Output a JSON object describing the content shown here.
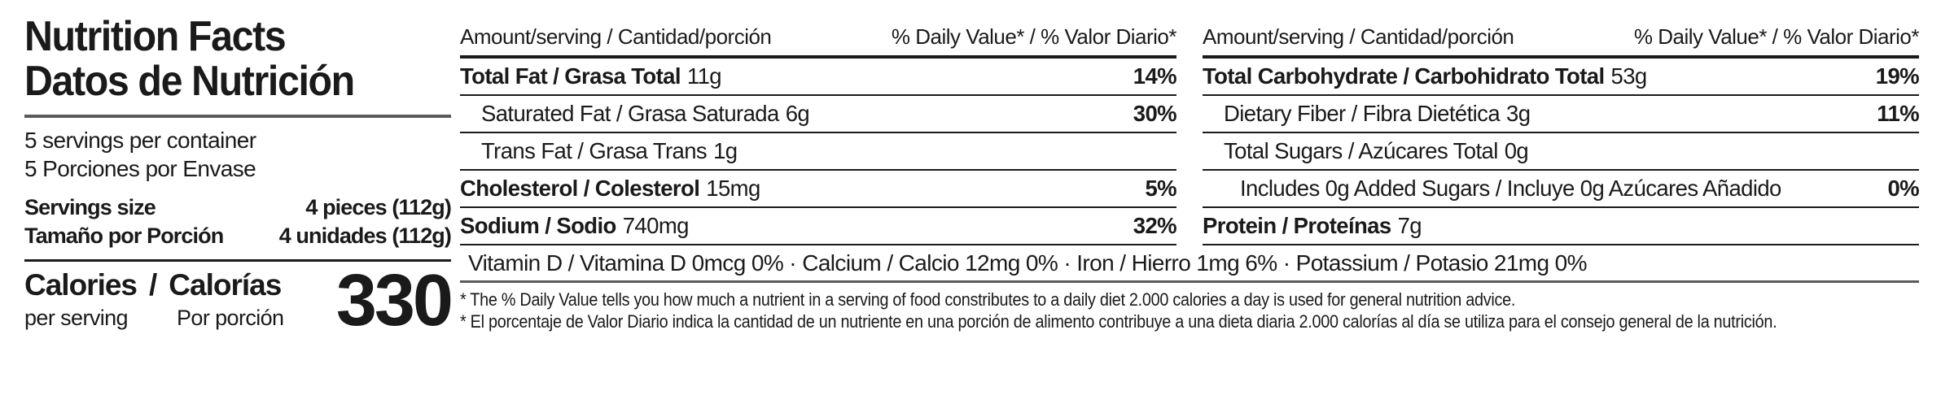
{
  "panel": {
    "title_en": "Nutrition Facts",
    "title_es": "Datos de Nutrición",
    "servings_per_container_en": "5 servings per container",
    "servings_per_container_es": "5 Porciones por Envase",
    "serving_size": {
      "label_en": "Servings size",
      "label_es": "Tamaño por Porción",
      "value_en": "4 pieces (112g)",
      "value_es": "4 unidades (112g)"
    },
    "calories": {
      "en": "Calories",
      "sep": "/",
      "es": "Calorías",
      "sub_en": "per serving",
      "sub_es": "Por porción",
      "value": "330"
    }
  },
  "tables": {
    "header": {
      "amount": "Amount/serving / Cantidad/porción",
      "daily_value": "% Daily Value* / % Valor Diario*"
    },
    "left": {
      "rows": [
        {
          "name": "Total Fat / Grasa Total",
          "amount": "11g",
          "dv": "14%"
        },
        {
          "name": "Saturated Fat / Grasa Saturada",
          "amount": "6g",
          "dv": "30%"
        },
        {
          "name": "Trans Fat / Grasa Trans",
          "amount": "1g",
          "dv": ""
        },
        {
          "name": "Cholesterol / Colesterol",
          "amount": "15mg",
          "dv": "5%"
        },
        {
          "name": "Sodium / Sodio",
          "amount": "740mg",
          "dv": "32%"
        }
      ]
    },
    "right": {
      "rows": [
        {
          "name": "Total Carbohydrate / Carbohidrato Total",
          "amount": "53g",
          "dv": "19%"
        },
        {
          "name": "Dietary Fiber / Fibra Dietética",
          "amount": "3g",
          "dv": "11%"
        },
        {
          "name": "Total Sugars / Azúcares Total",
          "amount": "0g",
          "dv": ""
        },
        {
          "name": "Includes 0g Added Sugars / Incluye 0g Azúcares Añadido",
          "amount": "",
          "dv": "0%"
        },
        {
          "name": "Protein / Proteínas",
          "amount": "7g",
          "dv": ""
        }
      ]
    }
  },
  "micronutrients": "Vitamin D / Vitamina D 0mcg 0% · Calcium / Calcio 12mg 0% · Iron / Hierro 1mg 6% · Potassium / Potasio 21mg 0%",
  "footnotes": {
    "en": "* The % Daily Value tells you how much a nutrient in a serving of food constributes to a daily diet 2.000 calories a day is used for general nutrition advice.",
    "es": "* El porcentaje de Valor Diario indica la cantidad de un nutriente en una porción de alimento contribuye a una dieta diaria 2.000 calorías al día se utiliza para el consejo general de la nutrición."
  },
  "colors": {
    "text": "#1a1a1a",
    "rule_black": "#1a1a1a",
    "rule_gray": "#5a5a5c",
    "background": "#ffffff"
  }
}
